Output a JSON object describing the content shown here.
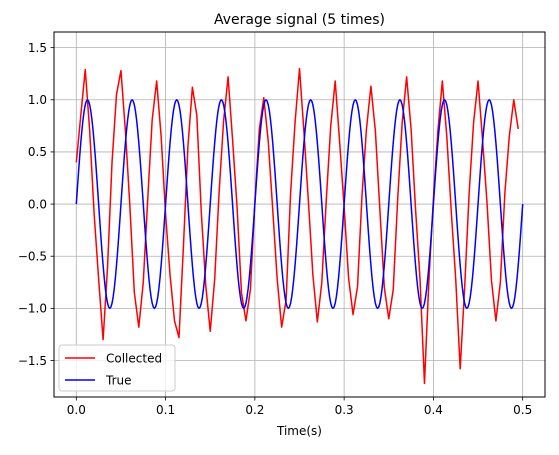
{
  "chart_data": {
    "type": "line",
    "title": "Average signal (5 times)",
    "xlabel": "Time(s)",
    "ylabel": "",
    "xlim": [
      -0.025,
      0.525
    ],
    "ylim": [
      -1.85,
      1.65
    ],
    "xticks": [
      0.0,
      0.1,
      0.2,
      0.3,
      0.4,
      0.5
    ],
    "xtick_labels": [
      "0.0",
      "0.1",
      "0.2",
      "0.3",
      "0.4",
      "0.5"
    ],
    "yticks": [
      -1.5,
      -1.0,
      -0.5,
      0.0,
      0.5,
      1.0,
      1.5
    ],
    "ytick_labels": [
      "−1.5",
      "−1.0",
      "−0.5",
      "0.0",
      "0.5",
      "1.0",
      "1.5"
    ],
    "grid": true,
    "legend_position": "lower-left",
    "series": [
      {
        "name": "Collected",
        "color": "#ff0000",
        "x": [
          0.0,
          0.005,
          0.01,
          0.015,
          0.02,
          0.025,
          0.03,
          0.035,
          0.04,
          0.045,
          0.05,
          0.055,
          0.06,
          0.065,
          0.07,
          0.075,
          0.08,
          0.085,
          0.09,
          0.095,
          0.1,
          0.105,
          0.11,
          0.115,
          0.12,
          0.125,
          0.13,
          0.135,
          0.14,
          0.145,
          0.15,
          0.155,
          0.16,
          0.165,
          0.17,
          0.175,
          0.18,
          0.185,
          0.19,
          0.195,
          0.2,
          0.205,
          0.21,
          0.215,
          0.22,
          0.225,
          0.23,
          0.235,
          0.24,
          0.245,
          0.25,
          0.255,
          0.26,
          0.265,
          0.27,
          0.275,
          0.28,
          0.285,
          0.29,
          0.295,
          0.3,
          0.305,
          0.31,
          0.315,
          0.32,
          0.325,
          0.33,
          0.335,
          0.34,
          0.345,
          0.35,
          0.355,
          0.36,
          0.365,
          0.37,
          0.375,
          0.38,
          0.385,
          0.39,
          0.395,
          0.4,
          0.405,
          0.41,
          0.415,
          0.42,
          0.425,
          0.43,
          0.435,
          0.44,
          0.445,
          0.45,
          0.455,
          0.46,
          0.465,
          0.47,
          0.475,
          0.48,
          0.485,
          0.49,
          0.495
        ],
        "values": [
          0.4,
          0.85,
          1.29,
          0.7,
          -0.1,
          -0.72,
          -1.3,
          -0.6,
          0.4,
          1.05,
          1.28,
          0.7,
          -0.02,
          -0.85,
          -1.18,
          -0.75,
          0.05,
          0.81,
          1.18,
          0.65,
          -0.1,
          -0.68,
          -1.12,
          -1.28,
          -0.4,
          0.55,
          1.12,
          0.85,
          -0.08,
          -0.78,
          -1.22,
          -0.72,
          0.12,
          0.8,
          1.22,
          0.62,
          -0.02,
          -0.85,
          -1.12,
          -0.82,
          0.02,
          0.72,
          1.02,
          0.6,
          -0.05,
          -0.72,
          -1.18,
          -0.92,
          0.1,
          0.78,
          1.3,
          0.69,
          0.02,
          -0.68,
          -1.13,
          -0.75,
          0.04,
          0.75,
          1.18,
          0.59,
          -0.03,
          -0.71,
          -1.06,
          -0.79,
          0.08,
          0.72,
          1.13,
          0.7,
          -0.05,
          -0.8,
          -1.1,
          -0.82,
          0.05,
          0.78,
          1.22,
          0.72,
          -0.05,
          -0.72,
          -1.72,
          -0.72,
          0.05,
          0.7,
          1.18,
          0.65,
          -0.07,
          -0.72,
          -1.58,
          -0.8,
          0.1,
          0.78,
          1.18,
          0.62,
          0.02,
          -0.73,
          -1.12,
          -0.75,
          0.1,
          0.65,
          1.0,
          0.72
        ]
      },
      {
        "name": "True",
        "color": "#0000ff",
        "function": "sin(2*pi*20*t)",
        "x_start": 0.0,
        "x_end": 0.5,
        "frequency_hz": 20,
        "amplitude": 1.0
      }
    ]
  }
}
